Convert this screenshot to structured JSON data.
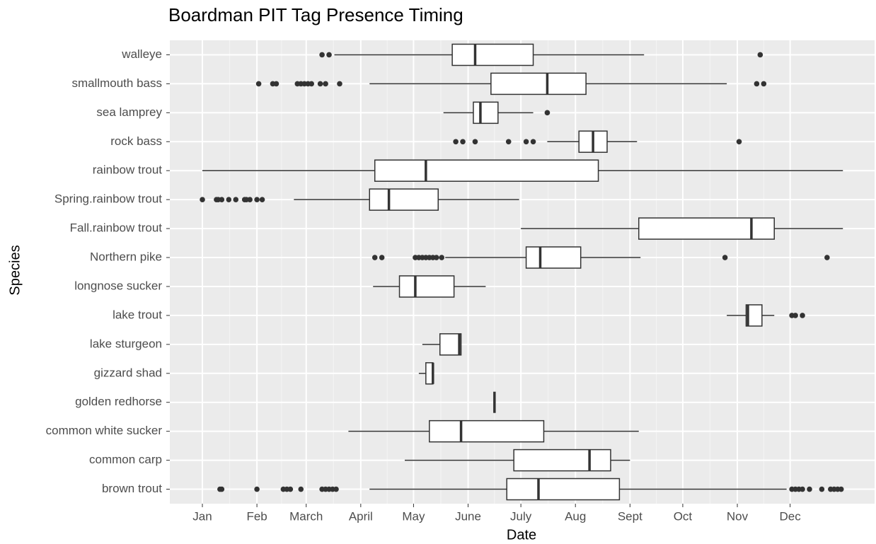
{
  "chart_data": {
    "type": "boxplot",
    "orientation": "horizontal",
    "title": "Boardman PIT Tag Presence Timing",
    "x_label": "Date",
    "y_label": "Species",
    "categories": [
      "walleye",
      "smallmouth bass",
      "sea lamprey",
      "rock bass",
      "rainbow trout",
      "Spring.rainbow trout",
      "Fall.rainbow trout",
      "Northern pike",
      "longnose sucker",
      "lake trout",
      "lake sturgeon",
      "gizzard shad",
      "golden redhorse",
      "common white sucker",
      "common carp",
      "brown trout"
    ],
    "boxes": [
      {
        "min": 76,
        "q1": 143,
        "median": 156,
        "q3": 189,
        "max": 252,
        "outliers": [
          69,
          73,
          318
        ]
      },
      {
        "min": 96,
        "q1": 165,
        "median": 197,
        "q3": 219,
        "max": 299,
        "outliers": [
          33,
          41,
          43,
          55,
          57,
          59,
          61,
          63,
          68,
          71,
          79,
          316,
          320
        ]
      },
      {
        "min": 138,
        "q1": 155,
        "median": 159,
        "q3": 169,
        "max": 189,
        "outliers": [
          197
        ]
      },
      {
        "min": 197,
        "q1": 215,
        "median": 223,
        "q3": 231,
        "max": 248,
        "outliers": [
          145,
          149,
          156,
          175,
          185,
          189,
          306
        ]
      },
      {
        "min": 1,
        "q1": 99,
        "median": 128,
        "q3": 226,
        "max": 365,
        "outliers": []
      },
      {
        "min": 53,
        "q1": 96,
        "median": 107,
        "q3": 135,
        "max": 181,
        "outliers": [
          1,
          9,
          10,
          12,
          16,
          20,
          25,
          26,
          28,
          32,
          35
        ]
      },
      {
        "min": 182,
        "q1": 249,
        "median": 313,
        "q3": 326,
        "max": 365,
        "outliers": []
      },
      {
        "min": 139,
        "q1": 185,
        "median": 193,
        "q3": 216,
        "max": 250,
        "outliers": [
          99,
          103,
          122,
          124,
          126,
          128,
          130,
          132,
          134,
          137,
          298,
          356
        ]
      },
      {
        "min": 98,
        "q1": 113,
        "median": 122,
        "q3": 144,
        "max": 162,
        "outliers": []
      },
      {
        "min": 299,
        "q1": 310,
        "median": 311,
        "q3": 319,
        "max": 326,
        "outliers": [
          336,
          338,
          342
        ]
      },
      {
        "min": 126,
        "q1": 136,
        "median": 147,
        "q3": 148,
        "max": 148,
        "outliers": []
      },
      {
        "min": 124,
        "q1": 128,
        "median": 132,
        "q3": 132,
        "max": 132,
        "outliers": []
      },
      {
        "min": 167,
        "q1": 167,
        "median": 167,
        "q3": 167,
        "max": 167,
        "outliers": []
      },
      {
        "min": 84,
        "q1": 130,
        "median": 148,
        "q3": 195,
        "max": 249,
        "outliers": []
      },
      {
        "min": 116,
        "q1": 178,
        "median": 221,
        "q3": 233,
        "max": 244,
        "outliers": []
      },
      {
        "min": 96,
        "q1": 174,
        "median": 192,
        "q3": 238,
        "max": 333,
        "outliers": [
          11,
          12,
          32,
          47,
          49,
          51,
          57,
          69,
          71,
          73,
          75,
          77,
          336,
          338,
          340,
          342,
          346,
          353,
          358,
          360,
          362,
          364
        ]
      }
    ],
    "xlim": [
      -17.5,
      383
    ],
    "xticks": [
      {
        "value": 1,
        "label": "Jan"
      },
      {
        "value": 32,
        "label": "Feb"
      },
      {
        "value": 60,
        "label": "March"
      },
      {
        "value": 91,
        "label": "April"
      },
      {
        "value": 121,
        "label": "May"
      },
      {
        "value": 152,
        "label": "June"
      },
      {
        "value": 182,
        "label": "July"
      },
      {
        "value": 213,
        "label": "Aug"
      },
      {
        "value": 244,
        "label": "Sept"
      },
      {
        "value": 274,
        "label": "Oct"
      },
      {
        "value": 305,
        "label": "Nov"
      },
      {
        "value": 335,
        "label": "Dec"
      }
    ],
    "grid": true,
    "box_fill": "#ffffff",
    "box_stroke": "#333333",
    "outlier_color": "#333333"
  }
}
